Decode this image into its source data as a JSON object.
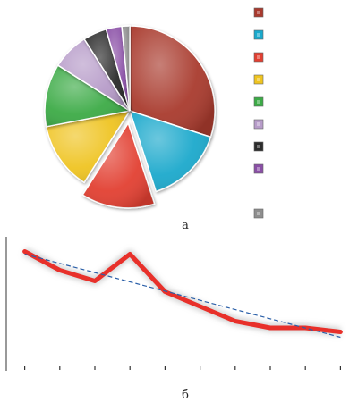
{
  "captions": {
    "top": "а",
    "bottom": "б"
  },
  "chart_data": [
    {
      "type": "pie",
      "exploded_index": 2,
      "slices": [
        {
          "value": 30.0,
          "color": "#a93a2e"
        },
        {
          "value": 15.0,
          "color": "#1aa9cc"
        },
        {
          "value": 14.0,
          "color": "#e23f31"
        },
        {
          "value": 13.0,
          "color": "#efc420"
        },
        {
          "value": 12.0,
          "color": "#3cab46"
        },
        {
          "value": 7.0,
          "color": "#b79cc9"
        },
        {
          "value": 4.5,
          "color": "#2c2c2c"
        },
        {
          "value": 3.0,
          "color": "#8a4fa6"
        },
        {
          "value": 1.5,
          "color": "#8e8e8e"
        }
      ],
      "legend": {
        "position": "right",
        "gap_before_last": true
      }
    },
    {
      "type": "line",
      "x": [
        1,
        2,
        3,
        4,
        5,
        6,
        7,
        8,
        9,
        10
      ],
      "xlim": [
        0.5,
        10.5
      ],
      "ylim": [
        0,
        10
      ],
      "series": [
        {
          "values": [
            8.9,
            7.5,
            6.7,
            8.7,
            5.9,
            4.8,
            3.7,
            3.2,
            3.2,
            2.9
          ],
          "color": "#e8302a",
          "style": "thick-solid"
        }
      ],
      "trendline": {
        "start": 8.7,
        "end": 2.5,
        "color": "#2a5fa8",
        "style": "dashed"
      },
      "grid": false
    }
  ]
}
